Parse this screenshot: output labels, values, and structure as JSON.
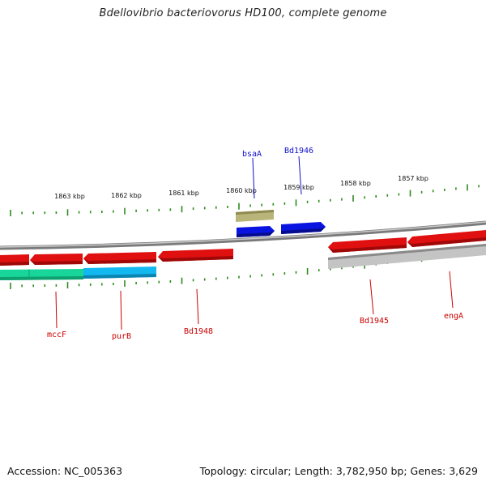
{
  "title": "Bdellovibrio bacteriovorus HD100, complete genome",
  "footer": {
    "accession": "Accession: NC_005363",
    "topology": "Topology: circular; Length: 3,782,950 bp; Genes: 3,629"
  },
  "colors": {
    "tick": "#2e8b1e",
    "backbone": "#8a8a8a",
    "gene_red": "#e01010",
    "gene_blue": "#0a14e0",
    "gene_khaki": "#b8b47a",
    "gene_green": "#18d69a",
    "gene_cyan": "#12b8f0",
    "gene_gray": "#c4c4c4",
    "label_red": "#cc0000",
    "label_blue": "#1010cc"
  },
  "top_scale_labels": [
    "1863 kbp",
    "1862 kbp",
    "1861 kbp",
    "1860 kbp",
    "1859 kbp",
    "1858 kbp",
    "1857 kbp"
  ],
  "gene_labels": {
    "top": [
      "bsaA",
      "Bd1946"
    ],
    "bottom": [
      "mccF",
      "purB",
      "Bd1948",
      "Bd1945",
      "engA"
    ]
  }
}
